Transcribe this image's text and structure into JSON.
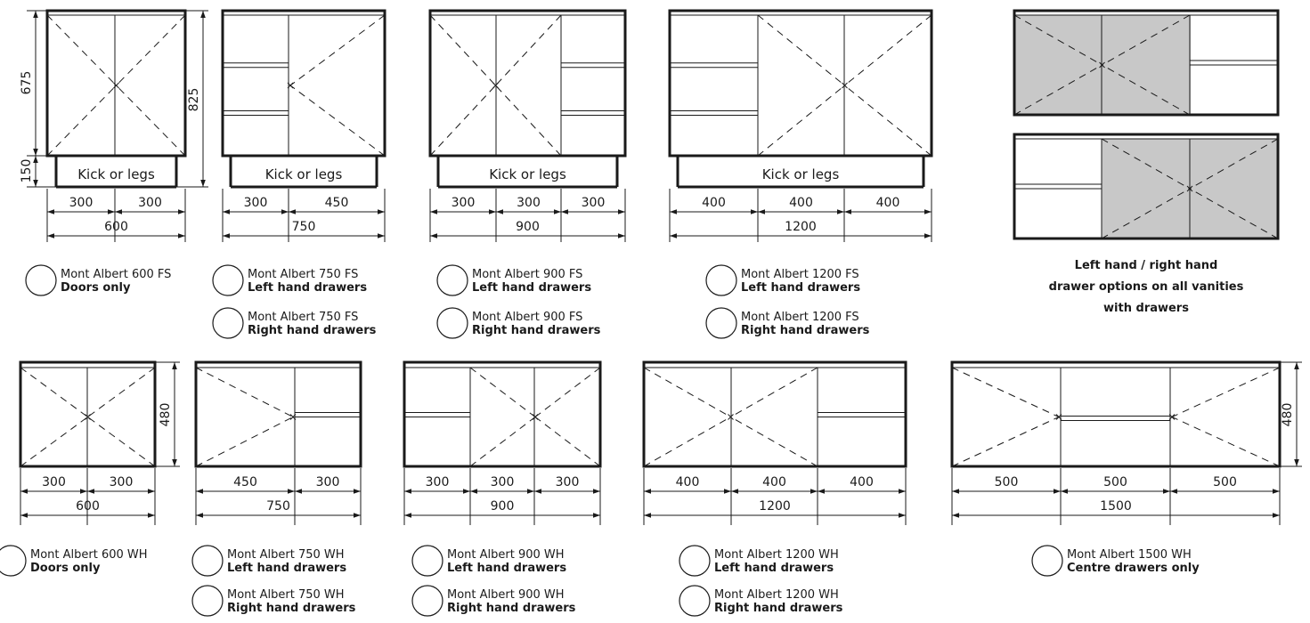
{
  "colors": {
    "line": "#1a1a1a",
    "shade": "#c8c8c8",
    "background": "#ffffff"
  },
  "kick_label": "Kick or legs",
  "side_dims": {
    "door_height": "675",
    "kick_height": "150",
    "fs_height": "825",
    "wh_height": "480"
  },
  "freestanding": [
    {
      "id": "fs600",
      "segments": [
        "300",
        "300"
      ],
      "total": "600",
      "options": [
        {
          "name": "Mont Albert 600 FS",
          "desc": "Doors only"
        }
      ]
    },
    {
      "id": "fs750",
      "segments": [
        "300",
        "450"
      ],
      "total": "750",
      "options": [
        {
          "name": "Mont Albert 750 FS",
          "desc": "Left hand drawers"
        },
        {
          "name": "Mont Albert 750 FS",
          "desc": "Right hand drawers"
        }
      ]
    },
    {
      "id": "fs900",
      "segments": [
        "300",
        "300",
        "300"
      ],
      "total": "900",
      "options": [
        {
          "name": "Mont Albert 900 FS",
          "desc": "Left hand drawers"
        },
        {
          "name": "Mont Albert 900 FS",
          "desc": "Right hand drawers"
        }
      ]
    },
    {
      "id": "fs1200",
      "segments": [
        "400",
        "400",
        "400"
      ],
      "total": "1200",
      "options": [
        {
          "name": "Mont Albert 1200 FS",
          "desc": "Left hand drawers"
        },
        {
          "name": "Mont Albert 1200 FS",
          "desc": "Right hand drawers"
        }
      ]
    }
  ],
  "drawer_note": [
    "Left hand / right hand",
    "drawer options on all vanities",
    "with drawers"
  ],
  "wall_hung": [
    {
      "id": "wh600",
      "segments": [
        "300",
        "300"
      ],
      "total": "600",
      "options": [
        {
          "name": "Mont Albert 600 WH",
          "desc": "Doors only"
        }
      ]
    },
    {
      "id": "wh750",
      "segments": [
        "450",
        "300"
      ],
      "total": "750",
      "options": [
        {
          "name": "Mont Albert 750 WH",
          "desc": "Left hand drawers"
        },
        {
          "name": "Mont Albert 750 WH",
          "desc": "Right hand drawers"
        }
      ]
    },
    {
      "id": "wh900",
      "segments": [
        "300",
        "300",
        "300"
      ],
      "total": "900",
      "options": [
        {
          "name": "Mont Albert 900 WH",
          "desc": "Left hand drawers"
        },
        {
          "name": "Mont Albert 900 WH",
          "desc": "Right hand drawers"
        }
      ]
    },
    {
      "id": "wh1200",
      "segments": [
        "400",
        "400",
        "400"
      ],
      "total": "1200",
      "options": [
        {
          "name": "Mont Albert 1200 WH",
          "desc": "Left hand drawers"
        },
        {
          "name": "Mont Albert 1200 WH",
          "desc": "Right hand drawers"
        }
      ]
    },
    {
      "id": "wh1500",
      "segments": [
        "500",
        "500",
        "500"
      ],
      "total": "1500",
      "options": [
        {
          "name": "Mont Albert 1500 WH",
          "desc": "Centre drawers only"
        }
      ]
    }
  ]
}
